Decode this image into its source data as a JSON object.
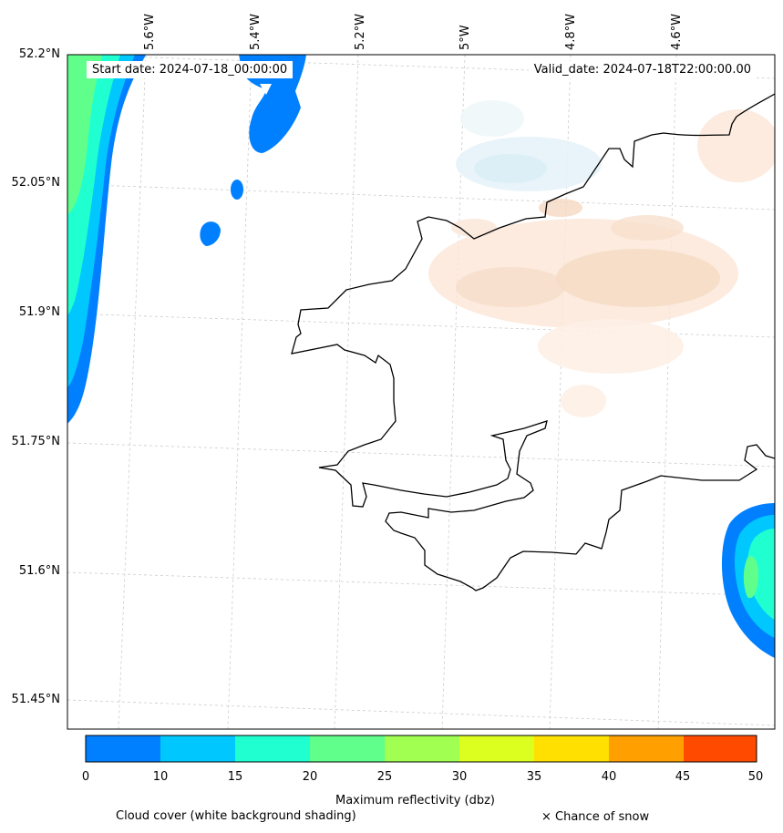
{
  "info": {
    "start_date": "Start date: 2024-07-18_00:00:00",
    "valid_date": "Valid_date: 2024-07-18T22:00:00.00"
  },
  "axes": {
    "longitude_labels": [
      "5.6°W",
      "5.4°W",
      "5.2°W",
      "5°W",
      "4.8°W",
      "4.6°W"
    ],
    "latitude_labels": [
      "52.2°N",
      "52.05°N",
      "51.9°N",
      "51.75°N",
      "51.6°N",
      "51.45°N"
    ]
  },
  "colorbar": {
    "ticks": [
      "0",
      "10",
      "15",
      "20",
      "25",
      "30",
      "35",
      "40",
      "45",
      "50"
    ],
    "colors": [
      "#0080ff",
      "#00c8ff",
      "#20ffd0",
      "#60ff8c",
      "#a0ff50",
      "#dcff20",
      "#ffe000",
      "#ffa000",
      "#ff8a00",
      "#ff4a00"
    ],
    "label": "Maximum reflectivity (dbz)"
  },
  "legend": {
    "cloud_cover": "Cloud cover (white background shading)",
    "snow": "× Chance of snow"
  },
  "map_colors": {
    "coast": "#000000",
    "grid": "#cccccc",
    "warm_haze": "#f5d8c0",
    "cool_haze": "#d8eef5"
  }
}
